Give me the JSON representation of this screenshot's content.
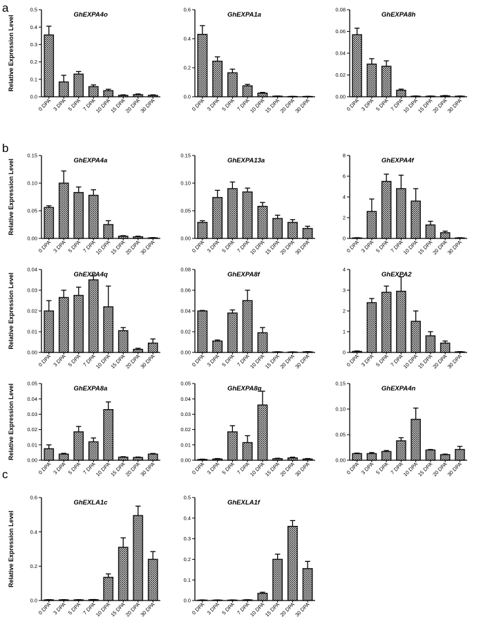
{
  "panel_letters": [
    "a",
    "b",
    "c"
  ],
  "ylabel": "Relative Expression Level",
  "categories": [
    "0 DPA",
    "3 DPA",
    "5 DPA",
    "7 DPA",
    "10 DPA",
    "15 DPA",
    "20 DPA",
    "30 DPA"
  ],
  "chart_data": [
    {
      "type": "bar",
      "panel": "a",
      "title": "GhEXPA4o",
      "ylabel": "Relative Expression Level",
      "categories": [
        "0 DPA",
        "3 DPA",
        "5 DPA",
        "7 DPA",
        "10 DPA",
        "15 DPA",
        "20 DPA",
        "30 DPA"
      ],
      "values": [
        0.355,
        0.085,
        0.13,
        0.058,
        0.035,
        0.008,
        0.012,
        0.008
      ],
      "errors": [
        0.05,
        0.038,
        0.015,
        0.01,
        0.008,
        0.003,
        0.004,
        0.003
      ],
      "ylim": [
        0,
        0.5
      ],
      "yticks": [
        "0.0",
        "0.1",
        "0.2",
        "0.3",
        "0.4",
        "0.5"
      ]
    },
    {
      "type": "bar",
      "panel": "a",
      "title": "GhEXPA1a",
      "ylabel": "",
      "categories": [
        "0 DPA",
        "3 DPA",
        "5 DPA",
        "7 DPA",
        "10 DPA",
        "15 DPA",
        "20 DPA",
        "30 DPA"
      ],
      "values": [
        0.43,
        0.245,
        0.165,
        0.075,
        0.025,
        0.004,
        0.002,
        0.002
      ],
      "errors": [
        0.06,
        0.03,
        0.025,
        0.01,
        0.005,
        0.001,
        0.001,
        0.001
      ],
      "ylim": [
        0,
        0.6
      ],
      "yticks": [
        "0.0",
        "0.2",
        "0.4",
        "0.6"
      ]
    },
    {
      "type": "bar",
      "panel": "a",
      "title": "GhEXPA8h",
      "ylabel": "",
      "categories": [
        "0 DPA",
        "3 DPA",
        "5 DPA",
        "7 DPA",
        "10 DPA",
        "15 DPA",
        "20 DPA",
        "30 DPA"
      ],
      "values": [
        0.057,
        0.03,
        0.028,
        0.006,
        0.0005,
        0.0005,
        0.0008,
        0.0005
      ],
      "errors": [
        0.006,
        0.005,
        0.005,
        0.001,
        0.0002,
        0.0002,
        0.0003,
        0.0002
      ],
      "ylim": [
        0,
        0.08
      ],
      "yticks": [
        "0.00",
        "0.02",
        "0.04",
        "0.06",
        "0.08"
      ]
    },
    {
      "type": "bar",
      "panel": "b",
      "title": "GhEXPA4a",
      "ylabel": "Relative Expression Level",
      "categories": [
        "0 DPA",
        "3 DPA",
        "5 DPA",
        "7 DPA",
        "10 DPA",
        "15 DPA",
        "20 DPA",
        "30 DPA"
      ],
      "values": [
        0.056,
        0.1,
        0.083,
        0.078,
        0.025,
        0.004,
        0.003,
        0.001
      ],
      "errors": [
        0.003,
        0.022,
        0.01,
        0.01,
        0.007,
        0.001,
        0.001,
        0.0005
      ],
      "ylim": [
        0,
        0.15
      ],
      "yticks": [
        "0.00",
        "0.05",
        "0.10",
        "0.15"
      ]
    },
    {
      "type": "bar",
      "panel": "b",
      "title": "GhEXPA13a",
      "ylabel": "",
      "categories": [
        "0 DPA",
        "3 DPA",
        "5 DPA",
        "7 DPA",
        "10 DPA",
        "15 DPA",
        "20 DPA",
        "30 DPA"
      ],
      "values": [
        0.029,
        0.074,
        0.09,
        0.084,
        0.058,
        0.036,
        0.029,
        0.018
      ],
      "errors": [
        0.003,
        0.013,
        0.012,
        0.007,
        0.007,
        0.006,
        0.005,
        0.004
      ],
      "ylim": [
        0,
        0.15
      ],
      "yticks": [
        "0.00",
        "0.05",
        "0.10",
        "0.15"
      ]
    },
    {
      "type": "bar",
      "panel": "b",
      "title": "GhEXPA4f",
      "ylabel": "",
      "categories": [
        "0 DPA",
        "3 DPA",
        "5 DPA",
        "7 DPA",
        "10 DPA",
        "15 DPA",
        "20 DPA",
        "30 DPA"
      ],
      "values": [
        0.05,
        2.6,
        5.5,
        4.8,
        3.6,
        1.3,
        0.55,
        0.05
      ],
      "errors": [
        0.02,
        1.2,
        0.7,
        1.3,
        1.2,
        0.35,
        0.15,
        0.02
      ],
      "ylim": [
        0,
        8
      ],
      "yticks": [
        "0",
        "2",
        "4",
        "6",
        "8"
      ]
    },
    {
      "type": "bar",
      "panel": "b",
      "title": "GhEXPA4q",
      "ylabel": "Relative Expression Level",
      "categories": [
        "0 DPA",
        "3 DPA",
        "5 DPA",
        "7 DPA",
        "10 DPA",
        "15 DPA",
        "20 DPA",
        "30 DPA"
      ],
      "values": [
        0.02,
        0.0265,
        0.0275,
        0.035,
        0.022,
        0.0105,
        0.0015,
        0.0045
      ],
      "errors": [
        0.005,
        0.0035,
        0.004,
        0.002,
        0.01,
        0.0015,
        0.0005,
        0.002
      ],
      "ylim": [
        0,
        0.04
      ],
      "yticks": [
        "0.00",
        "0.01",
        "0.02",
        "0.03",
        "0.04"
      ]
    },
    {
      "type": "bar",
      "panel": "b",
      "title": "GhEXPA8f",
      "ylabel": "",
      "categories": [
        "0 DPA",
        "3 DPA",
        "5 DPA",
        "7 DPA",
        "10 DPA",
        "15 DPA",
        "20 DPA",
        "30 DPA"
      ],
      "values": [
        0.04,
        0.011,
        0.038,
        0.05,
        0.019,
        0.0005,
        0.0004,
        0.0006
      ],
      "errors": [
        0.0005,
        0.001,
        0.003,
        0.01,
        0.005,
        0.0002,
        0.0002,
        0.0002
      ],
      "ylim": [
        0,
        0.08
      ],
      "yticks": [
        "0.00",
        "0.02",
        "0.04",
        "0.06",
        "0.08"
      ]
    },
    {
      "type": "bar",
      "panel": "b",
      "title": "GhEXPA2",
      "ylabel": "",
      "categories": [
        "0 DPA",
        "3 DPA",
        "5 DPA",
        "7 DPA",
        "10 DPA",
        "15 DPA",
        "20 DPA",
        "30 DPA"
      ],
      "values": [
        0.05,
        2.4,
        2.9,
        2.95,
        1.5,
        0.8,
        0.45,
        0.03
      ],
      "errors": [
        0.02,
        0.2,
        0.3,
        0.7,
        0.5,
        0.2,
        0.1,
        0.01
      ],
      "ylim": [
        0,
        4
      ],
      "yticks": [
        "0",
        "1",
        "2",
        "3",
        "4"
      ]
    },
    {
      "type": "bar",
      "panel": "b",
      "title": "GhEXPA8a",
      "ylabel": "Relative Expression Level",
      "categories": [
        "0 DPA",
        "3 DPA",
        "5 DPA",
        "7 DPA",
        "10 DPA",
        "15 DPA",
        "20 DPA",
        "30 DPA"
      ],
      "values": [
        0.0075,
        0.004,
        0.0185,
        0.012,
        0.033,
        0.002,
        0.0018,
        0.004
      ],
      "errors": [
        0.0025,
        0.0005,
        0.0035,
        0.0025,
        0.005,
        0.0003,
        0.0003,
        0.0004
      ],
      "ylim": [
        0,
        0.05
      ],
      "yticks": [
        "0.00",
        "0.01",
        "0.02",
        "0.03",
        "0.04",
        "0.05"
      ]
    },
    {
      "type": "bar",
      "panel": "b",
      "title": "GhEXPA8g",
      "ylabel": "",
      "categories": [
        "0 DPA",
        "3 DPA",
        "5 DPA",
        "7 DPA",
        "10 DPA",
        "15 DPA",
        "20 DPA",
        "30 DPA"
      ],
      "values": [
        0.0005,
        0.0008,
        0.0185,
        0.0115,
        0.036,
        0.001,
        0.0015,
        0.0008
      ],
      "errors": [
        0.0002,
        0.0003,
        0.004,
        0.0045,
        0.009,
        0.0003,
        0.0005,
        0.0003
      ],
      "ylim": [
        0,
        0.05
      ],
      "yticks": [
        "0.00",
        "0.01",
        "0.02",
        "0.03",
        "0.04",
        "0.05"
      ]
    },
    {
      "type": "bar",
      "panel": "b",
      "title": "GhEXPA4n",
      "ylabel": "",
      "categories": [
        "0 DPA",
        "3 DPA",
        "5 DPA",
        "7 DPA",
        "10 DPA",
        "15 DPA",
        "20 DPA",
        "30 DPA"
      ],
      "values": [
        0.013,
        0.013,
        0.017,
        0.038,
        0.08,
        0.02,
        0.011,
        0.021
      ],
      "errors": [
        0.001,
        0.002,
        0.002,
        0.006,
        0.022,
        0.001,
        0.001,
        0.006
      ],
      "ylim": [
        0,
        0.15
      ],
      "yticks": [
        "0.00",
        "0.05",
        "0.10",
        "0.15"
      ]
    },
    {
      "type": "bar",
      "panel": "c",
      "title": "GhEXLA1c",
      "ylabel": "Relative Expression Level",
      "categories": [
        "0 DPA",
        "3 DPA",
        "5 DPA",
        "7 DPA",
        "10 DPA",
        "15 DPA",
        "20 DPA",
        "30 DPA"
      ],
      "values": [
        0.004,
        0.004,
        0.004,
        0.005,
        0.135,
        0.31,
        0.495,
        0.24
      ],
      "errors": [
        0.001,
        0.001,
        0.001,
        0.001,
        0.02,
        0.055,
        0.055,
        0.045
      ],
      "ylim": [
        0,
        0.6
      ],
      "yticks": [
        "0.0",
        "0.2",
        "0.4",
        "0.6"
      ]
    },
    {
      "type": "bar",
      "panel": "c",
      "title": "GhEXLA1f",
      "ylabel": "",
      "categories": [
        "0 DPA",
        "3 DPA",
        "5 DPA",
        "7 DPA",
        "10 DPA",
        "15 DPA",
        "20 DPA",
        "30 DPA"
      ],
      "values": [
        0.002,
        0.002,
        0.002,
        0.003,
        0.035,
        0.2,
        0.36,
        0.155
      ],
      "errors": [
        0.001,
        0.001,
        0.001,
        0.001,
        0.005,
        0.025,
        0.028,
        0.035
      ],
      "ylim": [
        0,
        0.5
      ],
      "yticks": [
        "0.0",
        "0.1",
        "0.2",
        "0.3",
        "0.4",
        "0.5"
      ]
    }
  ],
  "colors": {
    "bar_stroke": "#111111",
    "hatch_line": "#222222",
    "hatch_bg": "#ffffff"
  }
}
